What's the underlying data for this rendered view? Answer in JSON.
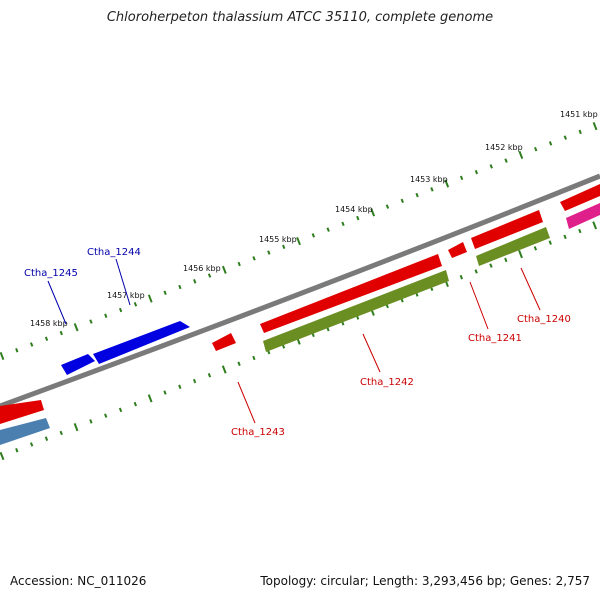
{
  "title": "Chloroherpeton thalassium ATCC 35110, complete genome",
  "footer": {
    "accession": "Accession: NC_011026",
    "summary": "Topology: circular; Length: 3,293,456 bp; Genes: 2,757"
  },
  "colors": {
    "backbone": "#7a7a7a",
    "tick": "#2e7d1e",
    "cds_forward": "#0000e0",
    "cds_reverse": "#e00000",
    "rna": "#6b8e23",
    "steelblue": "#4a7fb0",
    "magenta": "#e0208a",
    "label_forward": "#0000aa",
    "label_reverse": "#cc0000"
  },
  "scale_labels": [
    {
      "text": "1451 kbp"
    },
    {
      "text": "1452 kbp"
    },
    {
      "text": "1453 kbp"
    },
    {
      "text": "1454 kbp"
    },
    {
      "text": "1455 kbp"
    },
    {
      "text": "1456 kbp"
    },
    {
      "text": "1457 kbp"
    },
    {
      "text": "1458 kbp"
    }
  ],
  "genes": [
    {
      "label": "Ctha_1245",
      "strand": "forward"
    },
    {
      "label": "Ctha_1244",
      "strand": "forward"
    },
    {
      "label": "Ctha_1243",
      "strand": "reverse"
    },
    {
      "label": "Ctha_1242",
      "strand": "reverse"
    },
    {
      "label": "Ctha_1241",
      "strand": "reverse"
    },
    {
      "label": "Ctha_1240",
      "strand": "reverse"
    }
  ]
}
